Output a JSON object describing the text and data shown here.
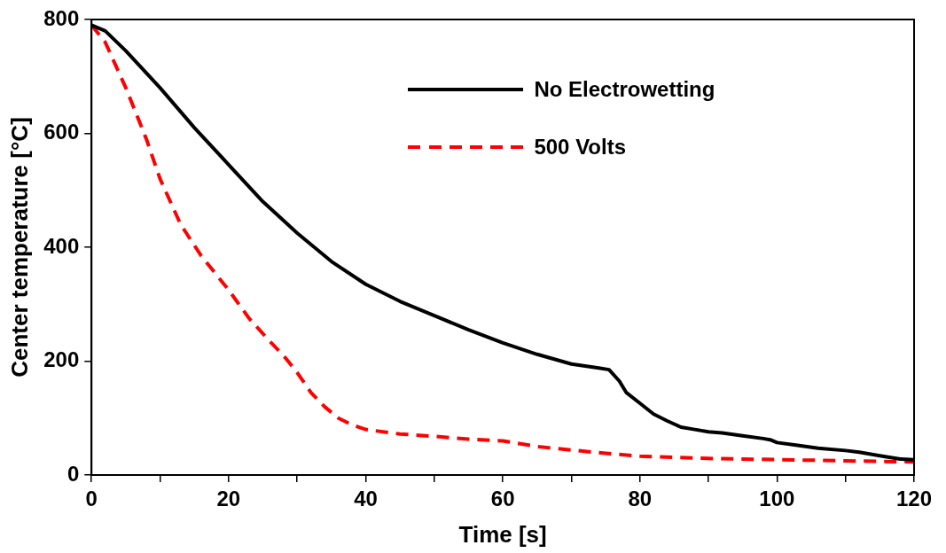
{
  "chart_data": {
    "type": "line",
    "xlabel": "Time [s]",
    "ylabel": "Center temperature [°C]",
    "xlim": [
      0,
      120
    ],
    "ylim": [
      0,
      800
    ],
    "xticks": [
      0,
      {
        "value": 10,
        "label": null
      },
      20,
      {
        "value": 30,
        "label": null
      },
      40,
      {
        "value": 50,
        "label": null
      },
      60,
      {
        "value": 70,
        "label": null
      },
      80,
      {
        "value": 90,
        "label": null
      },
      100,
      {
        "value": 110,
        "label": null
      },
      120
    ],
    "yticks": [
      0,
      200,
      400,
      600,
      800
    ],
    "grid": false,
    "legend": "top right",
    "marker": "none",
    "series": [
      {
        "name": "No Electrowetting",
        "color": "#000000",
        "line_style": "solid",
        "x": [
          0,
          2,
          5,
          10,
          15,
          20,
          25,
          30,
          35,
          40,
          45,
          50,
          55,
          60,
          65,
          70,
          74,
          75.5,
          77,
          78,
          80,
          82,
          84,
          86,
          88,
          90,
          92,
          95,
          98,
          99,
          100,
          103,
          106,
          110,
          112,
          115,
          118,
          120
        ],
        "values": [
          790,
          780,
          745,
          680,
          610,
          545,
          480,
          425,
          375,
          335,
          305,
          280,
          255,
          232,
          212,
          195,
          188,
          185,
          165,
          145,
          126,
          107,
          95,
          84,
          80,
          76,
          74,
          69,
          64,
          62,
          57,
          52,
          47,
          43,
          40,
          34,
          28,
          27
        ]
      },
      {
        "name": "500 Volts",
        "color": "#ff0000",
        "line_style": "dashed",
        "x": [
          0,
          2,
          5,
          8,
          10,
          13,
          16,
          20,
          23,
          26,
          28,
          30,
          32,
          34,
          36,
          38,
          40,
          45,
          50,
          55,
          60,
          65,
          70,
          75,
          80,
          90,
          100,
          110,
          120
        ],
        "values": [
          790,
          760,
          680,
          590,
          520,
          440,
          385,
          325,
          275,
          235,
          210,
          180,
          145,
          120,
          100,
          88,
          80,
          72,
          68,
          63,
          60,
          50,
          44,
          38,
          33,
          29,
          27,
          25,
          23
        ]
      }
    ]
  }
}
